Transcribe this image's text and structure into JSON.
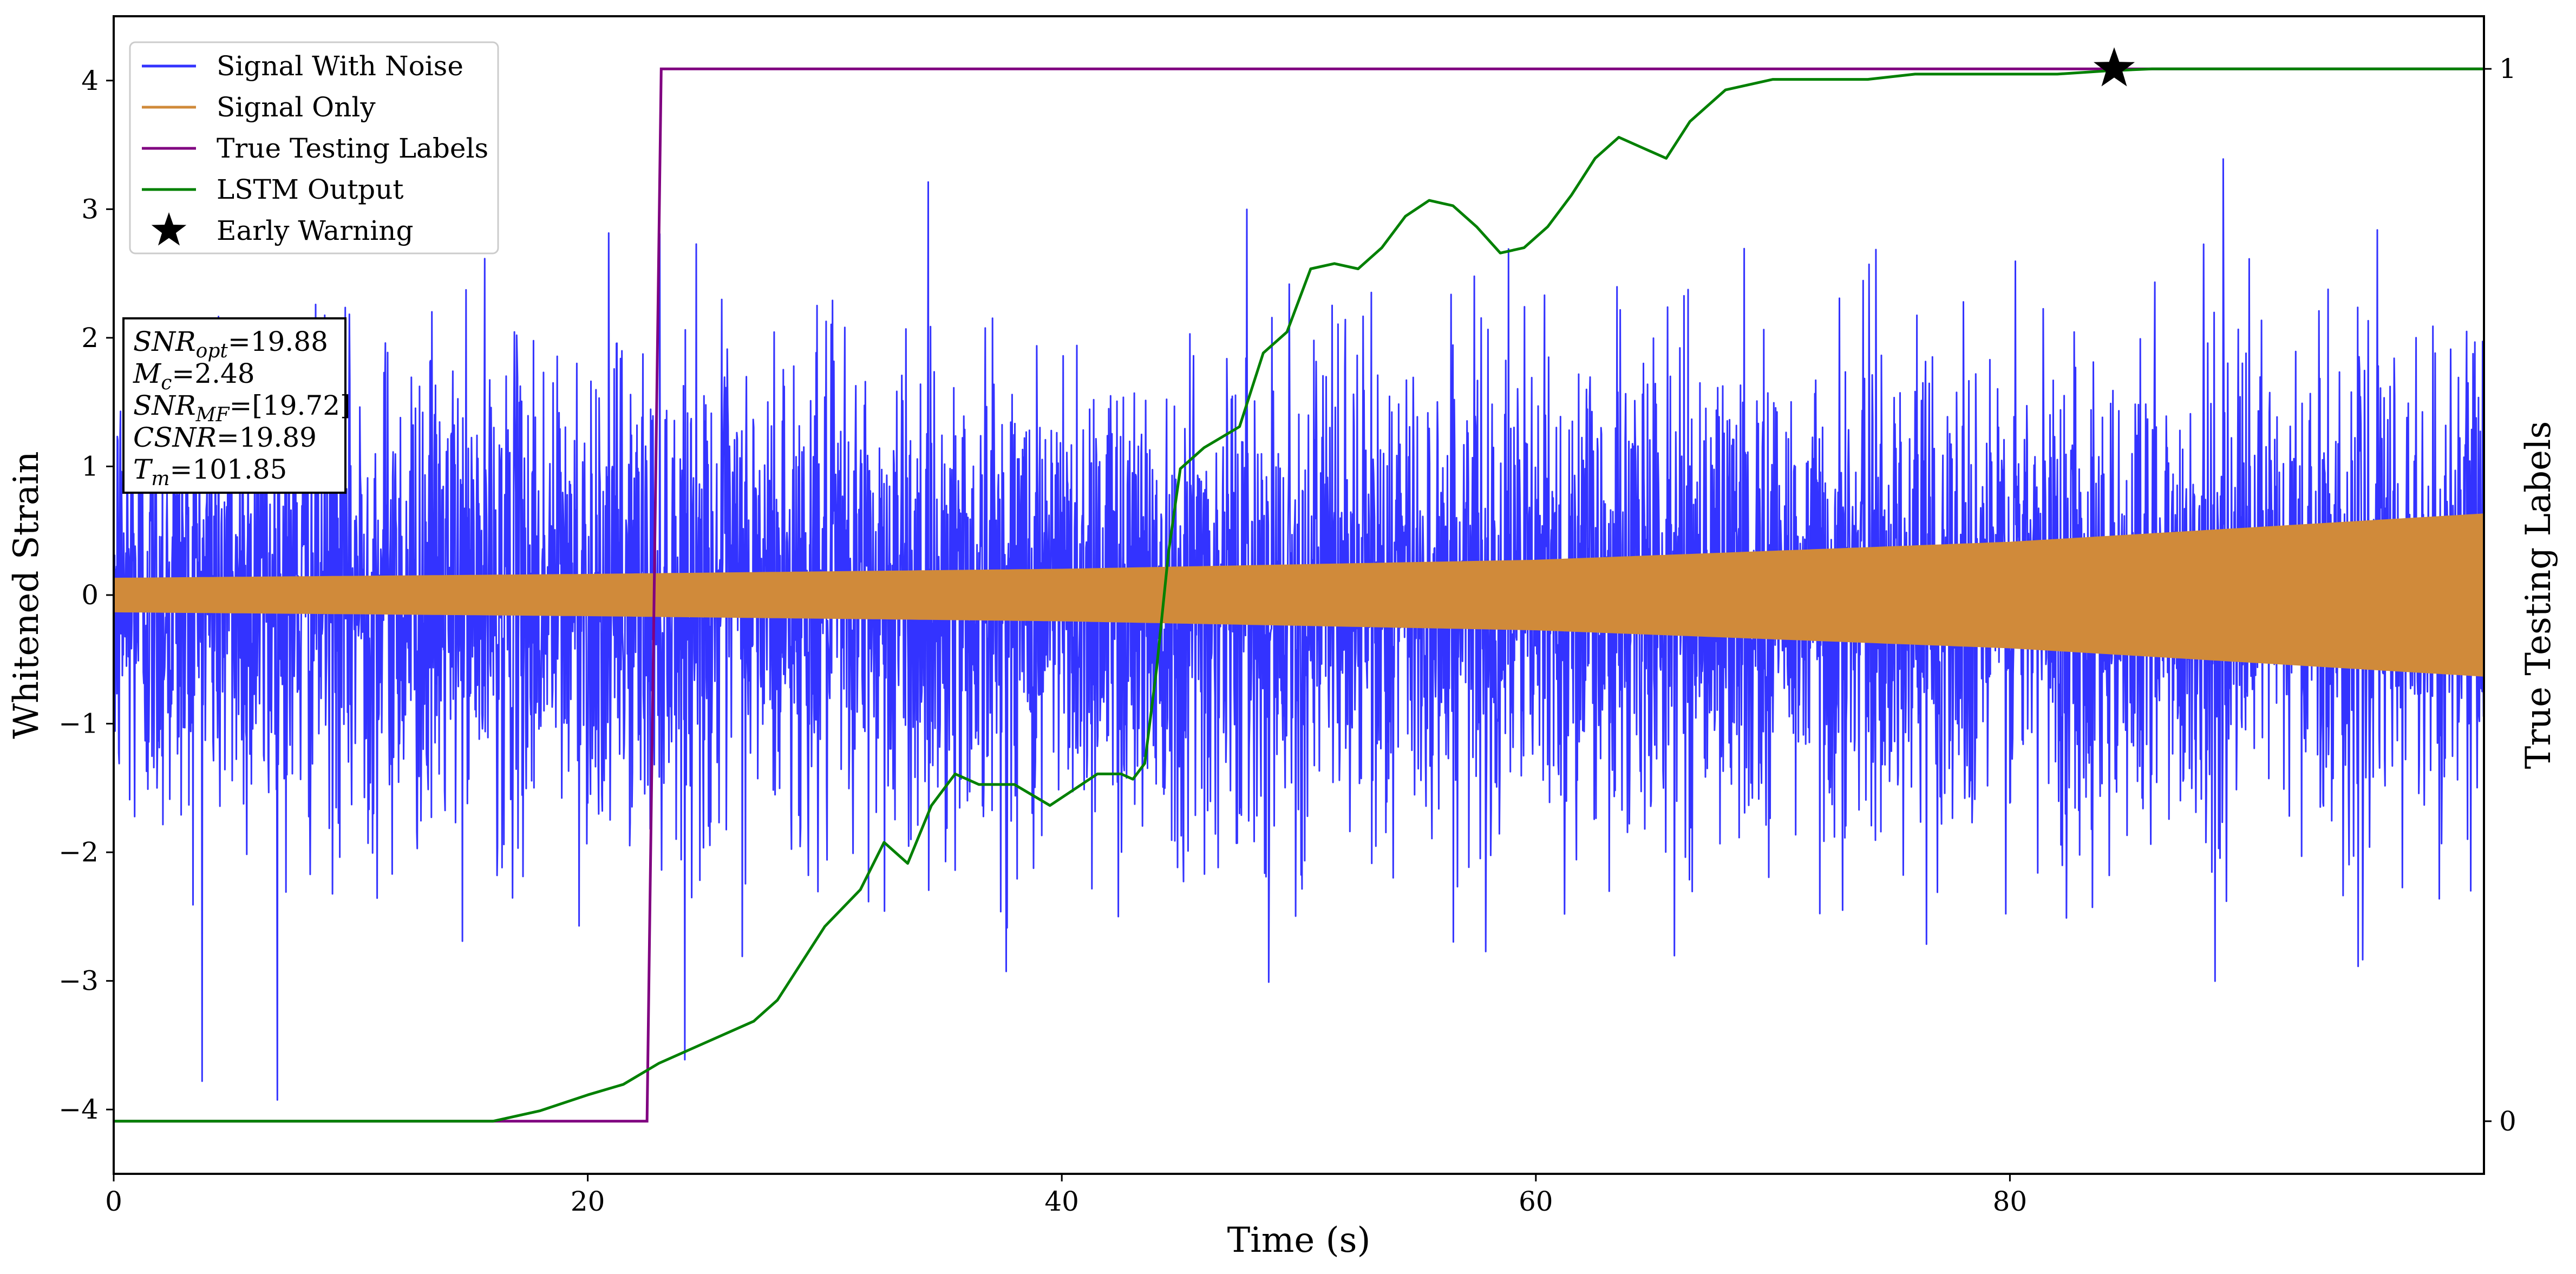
{
  "chart_data": {
    "type": "line",
    "title": "",
    "xlabel": "Time (s)",
    "ylabel": "Whitened Strain",
    "y2label": "True Testing Labels",
    "xlim": [
      0,
      100
    ],
    "ylim": [
      -4.5,
      4.5
    ],
    "y2lim": [
      -0.05,
      1.05
    ],
    "x_ticks": [
      0,
      20,
      40,
      60,
      80
    ],
    "y_ticks": [
      -4,
      -3,
      -2,
      -1,
      0,
      1,
      2,
      3,
      4
    ],
    "y2_ticks": [
      0,
      1
    ],
    "x_tick_labels": [
      "0",
      "20",
      "40",
      "60",
      "80"
    ],
    "y_tick_labels": [
      "−4",
      "−3",
      "−2",
      "−1",
      "0",
      "1",
      "2",
      "3",
      "4"
    ],
    "y2_tick_labels": [
      "0",
      "1"
    ],
    "grid": false,
    "legend_position": "top-left",
    "series": [
      {
        "name": "Signal With Noise",
        "color": "#3333ff",
        "axis": "left",
        "kind": "noise-band",
        "typical_amplitude": 1.3,
        "peak_amplitude": 4.0
      },
      {
        "name": "Signal Only",
        "color": "#d08a3a",
        "axis": "left",
        "kind": "chirp-envelope",
        "x": [
          0,
          20,
          40,
          60,
          80,
          100
        ],
        "amplitude": [
          0.13,
          0.16,
          0.2,
          0.27,
          0.41,
          0.63
        ]
      },
      {
        "name": "True Testing Labels",
        "color": "#800080",
        "axis": "right",
        "kind": "step",
        "x": [
          0,
          22.5,
          23.1,
          100
        ],
        "y": [
          0,
          0,
          1,
          1
        ]
      },
      {
        "name": "LSTM Output",
        "color": "#008000",
        "axis": "right",
        "kind": "line",
        "x": [
          0,
          10,
          16,
          18,
          20,
          21.5,
          23,
          25,
          27,
          28,
          30,
          31.5,
          32.5,
          33.5,
          34.5,
          35.5,
          36.5,
          38,
          39.5,
          40.5,
          41.5,
          42.5,
          43,
          43.5,
          44,
          44.5,
          45,
          46,
          47.5,
          48.5,
          49.5,
          50.5,
          51.5,
          52.5,
          53.5,
          54.5,
          55.5,
          56.5,
          57.5,
          58.5,
          59.5,
          60.5,
          61.5,
          62.5,
          63.5,
          64.5,
          65.5,
          66.5,
          68,
          70,
          72,
          74,
          76,
          78,
          80,
          82,
          84,
          86,
          90,
          95,
          100
        ],
        "y": [
          0,
          0,
          0,
          0.01,
          0.025,
          0.035,
          0.055,
          0.075,
          0.095,
          0.115,
          0.185,
          0.22,
          0.265,
          0.245,
          0.3,
          0.33,
          0.32,
          0.32,
          0.3,
          0.315,
          0.33,
          0.33,
          0.325,
          0.34,
          0.43,
          0.54,
          0.62,
          0.64,
          0.66,
          0.73,
          0.75,
          0.81,
          0.815,
          0.81,
          0.83,
          0.86,
          0.875,
          0.87,
          0.85,
          0.825,
          0.83,
          0.85,
          0.88,
          0.915,
          0.935,
          0.925,
          0.915,
          0.95,
          0.98,
          0.99,
          0.99,
          0.99,
          0.995,
          0.995,
          0.995,
          0.995,
          0.998,
          1.0,
          1.0,
          1.0,
          1.0
        ]
      }
    ],
    "early_warning": {
      "name": "Early Warning",
      "x": 84.4,
      "y": 1.0,
      "color": "#000000"
    },
    "stats": [
      {
        "var": "SNR",
        "sub": "opt",
        "value": "=19.88"
      },
      {
        "var": "M",
        "sub": "c",
        "value": "=2.48"
      },
      {
        "var": "SNR",
        "sub": "MF",
        "value": "=[19.72]"
      },
      {
        "var": "CSNR",
        "sub": "",
        "value": "=19.89"
      },
      {
        "var": "T",
        "sub": "m",
        "value": "=101.85"
      }
    ]
  }
}
